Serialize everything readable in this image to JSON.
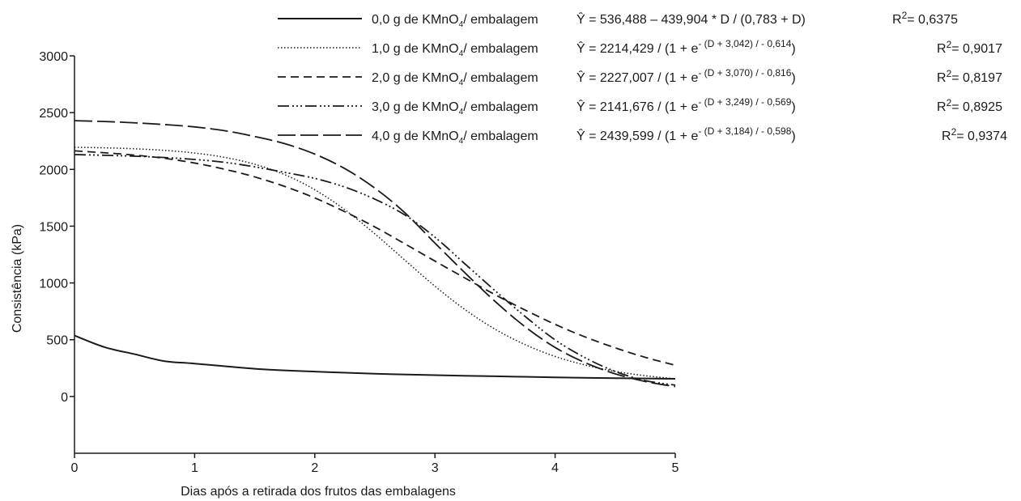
{
  "chart_data": {
    "type": "line",
    "xlabel": "Dias após a retirada dos frutos das embalagens",
    "ylabel": "Consistência  (kPa)",
    "xlim": [
      0,
      5
    ],
    "ylim": [
      -500,
      3000
    ],
    "x_ticks": [
      "0",
      "1",
      "2",
      "3",
      "4",
      "5"
    ],
    "y_ticks": [
      "0",
      "500",
      "1000",
      "1500",
      "2000",
      "2500",
      "3000"
    ],
    "x_tick_values": [
      0,
      1,
      2,
      3,
      4,
      5
    ],
    "y_tick_values": [
      0,
      500,
      1000,
      1500,
      2000,
      2500,
      3000
    ],
    "grid": false,
    "legend_position": "top-right",
    "series": [
      {
        "name": "0,0 g de KMnO4/ embalagem",
        "label": {
          "pre": "0,0 g de KMnO",
          "sub": "4",
          "post": "/ embalagem"
        },
        "equation": {
          "main": "Ŷ =  536,488 – 439,904 * D / (0,783 + D)",
          "exp": "",
          "close": ""
        },
        "r2": {
          "base": "R",
          "sup": "2",
          "val": "= 0,6375"
        },
        "dash": "",
        "stroke_width": 2,
        "x": [
          0,
          0.25,
          0.5,
          0.75,
          1,
          1.5,
          2,
          2.5,
          3,
          3.5,
          4,
          4.5,
          5
        ],
        "values": [
          536.5,
          434.5,
          372.7,
          311.0,
          289.7,
          244.4,
          219.1,
          200.2,
          187.6,
          177.9,
          168.4,
          160.9,
          156.2
        ]
      },
      {
        "name": "1,0 g de KMnO4/ embalagem",
        "label": {
          "pre": "1,0 g de KMnO",
          "sub": "4",
          "post": "/ embalagem"
        },
        "equation": {
          "main": "Ŷ =  2214,429 / (1 + e",
          "exp": "- (D + 3,042) / - 0,614",
          "close": ")"
        },
        "r2": {
          "base": "R",
          "sup": "2",
          "val": "= 0,9017"
        },
        "dash": "1.5,2.5",
        "stroke_width": 1.5,
        "x": [
          0,
          0.25,
          0.5,
          0.75,
          1,
          1.25,
          1.5,
          1.75,
          2,
          2.25,
          2.5,
          2.75,
          3,
          3.25,
          3.5,
          3.75,
          4,
          4.25,
          4.5,
          4.75,
          5
        ],
        "values": [
          2194.9,
          2189.9,
          2181.5,
          2167.4,
          2144.0,
          2105.8,
          2045.3,
          1953.1,
          1820.7,
          1644.7,
          1432.1,
          1200.4,
          971.2,
          765.2,
          592.9,
          456.9,
          352.7,
          276.6,
          221.6,
          183.0,
          155.7
        ]
      },
      {
        "name": "2,0 g de KMnO4/ embalagem",
        "label": {
          "pre": "2,0 g de KMnO",
          "sub": "4",
          "post": "/ embalagem"
        },
        "equation": {
          "main": "Ŷ =  2227,007 / (1 + e",
          "exp": "- (D + 3,070) / - 0,816",
          "close": ")"
        },
        "r2": {
          "base": "R",
          "sup": "2",
          "val": "= 0,8197"
        },
        "dash": "10,6",
        "stroke_width": 1.8,
        "x": [
          0,
          0.25,
          0.5,
          0.75,
          1,
          1.25,
          1.5,
          1.75,
          2,
          2.25,
          2.5,
          2.75,
          3,
          3.25,
          3.5,
          3.75,
          4,
          4.25,
          4.5,
          4.75,
          5
        ],
        "values": [
          2163.1,
          2146.3,
          2125.9,
          2097.4,
          2056.0,
          2001.4,
          1933.9,
          1849.7,
          1748.6,
          1627.3,
          1493.0,
          1344.1,
          1192.3,
          1043.3,
          896.6,
          761.4,
          635.2,
          524.1,
          428.4,
          344.9,
          274.5
        ]
      },
      {
        "name": "3,0 g de KMnO4/ embalagem",
        "label": {
          "pre": "3,0 g de KMnO",
          "sub": "4",
          "post": "/ embalagem"
        },
        "equation": {
          "main": "Ŷ =  2141,676 / (1 + e",
          "exp": "- (D + 3,249) / - 0,569",
          "close": ")"
        },
        "r2": {
          "base": "R",
          "sup": "2",
          "val": "= 0,8925"
        },
        "dash": "14,4,2,3,2,3,2,4",
        "stroke_width": 1.8,
        "x": [
          0,
          0.25,
          0.5,
          0.75,
          1,
          1.25,
          1.5,
          1.75,
          2,
          2.25,
          2.5,
          2.75,
          3,
          3.25,
          3.5,
          3.75,
          4,
          4.25,
          4.5,
          4.75,
          5
        ],
        "values": [
          2130.3,
          2124.3,
          2116.3,
          2104.5,
          2087.5,
          2062.1,
          2022.5,
          1973.4,
          1920.9,
          1844.2,
          1737.6,
          1598.5,
          1402.6,
          1167.7,
          932.2,
          705.5,
          498.6,
          341.1,
          220.6,
          140.2,
          100.0
        ]
      },
      {
        "name": "4,0 g de KMnO4/ embalagem",
        "label": {
          "pre": "4,0 g de KMnO",
          "sub": "4",
          "post": "/ embalagem"
        },
        "equation": {
          "main": "Ŷ =  2439,599 / (1 + e",
          "exp": "- (D + 3,184) / - 0,598",
          "close": ")"
        },
        "r2": {
          "base": "R",
          "sup": "2",
          "val": "= 0,9374"
        },
        "dash": "22,6",
        "stroke_width": 1.8,
        "x": [
          0,
          0.25,
          0.5,
          0.75,
          1,
          1.25,
          1.5,
          1.75,
          2,
          2.25,
          2.5,
          2.75,
          3,
          3.25,
          3.5,
          3.75,
          4,
          4.25,
          4.5,
          4.75,
          5
        ],
        "values": [
          2429.0,
          2421.6,
          2410.1,
          2394.7,
          2373.9,
          2340.8,
          2289.5,
          2226.3,
          2134.8,
          2006.9,
          1834.6,
          1617.6,
          1350.7,
          1088.6,
          837.8,
          614.2,
          431.7,
          297.7,
          199.4,
          132.2,
          87.0
        ]
      }
    ]
  }
}
